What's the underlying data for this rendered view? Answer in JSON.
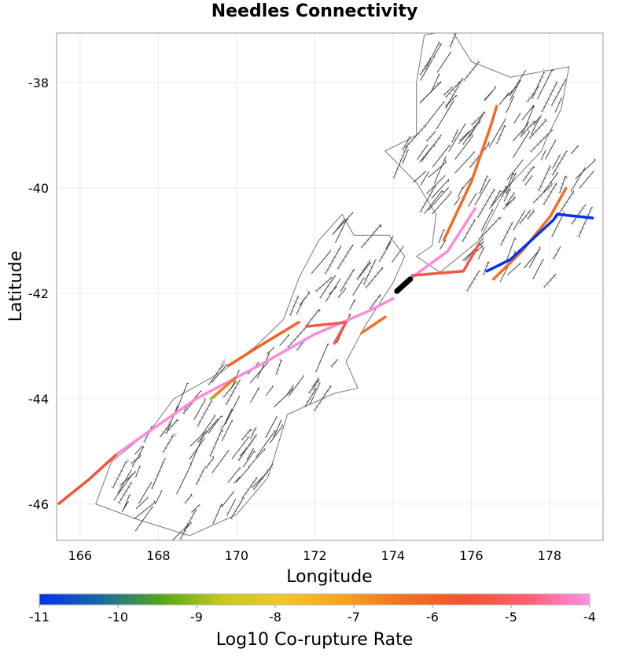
{
  "chart_data": {
    "type": "map",
    "title": "Needles Connectivity",
    "xlabel": "Longitude",
    "ylabel": "Latitude",
    "xlim": [
      165.4,
      179.37
    ],
    "ylim": [
      -46.69,
      -37.06
    ],
    "xticks": [
      166,
      168,
      170,
      172,
      174,
      176,
      178
    ],
    "yticks": [
      -38,
      -40,
      -42,
      -44,
      -46
    ],
    "grid": true,
    "colorbar": {
      "label": "Log10 Co-rupture Rate",
      "range": [
        -11,
        -4
      ],
      "ticks": [
        -11,
        -10,
        -9,
        -8,
        -7,
        -6,
        -5,
        -4
      ],
      "placement": "bottom",
      "colors": [
        "#0033ee",
        "#1a6aa0",
        "#52a818",
        "#c8c820",
        "#f4c52a",
        "#f7a020",
        "#f07020",
        "#ee5530",
        "#fe6070",
        "#ff90e8"
      ]
    },
    "coastline": [
      [
        [
          166.4,
          -46.0
        ],
        [
          166.8,
          -45.2
        ],
        [
          167.8,
          -44.6
        ],
        [
          168.4,
          -44.0
        ],
        [
          169.6,
          -43.5
        ],
        [
          170.5,
          -43.0
        ],
        [
          171.2,
          -42.5
        ],
        [
          171.6,
          -41.7
        ],
        [
          172.1,
          -41.0
        ],
        [
          172.7,
          -40.5
        ],
        [
          173.0,
          -40.9
        ],
        [
          173.9,
          -40.9
        ],
        [
          174.3,
          -41.3
        ],
        [
          174.0,
          -41.8
        ],
        [
          173.3,
          -42.6
        ],
        [
          172.8,
          -43.3
        ],
        [
          173.1,
          -43.8
        ],
        [
          172.5,
          -43.9
        ],
        [
          171.3,
          -44.3
        ],
        [
          170.8,
          -45.5
        ],
        [
          170.0,
          -46.2
        ],
        [
          168.8,
          -46.6
        ],
        [
          167.5,
          -46.3
        ]
      ],
      [
        [
          174.6,
          -41.3
        ],
        [
          175.2,
          -41.6
        ],
        [
          176.2,
          -41.0
        ],
        [
          176.9,
          -40.0
        ],
        [
          177.8,
          -39.3
        ],
        [
          177.9,
          -39.1
        ],
        [
          178.3,
          -38.5
        ],
        [
          178.5,
          -37.7
        ],
        [
          177.0,
          -37.9
        ],
        [
          176.0,
          -37.6
        ],
        [
          175.5,
          -37.0
        ],
        [
          174.8,
          -37.1
        ],
        [
          174.6,
          -38.0
        ],
        [
          174.6,
          -39.0
        ],
        [
          173.8,
          -39.3
        ],
        [
          174.6,
          -39.9
        ],
        [
          175.1,
          -40.5
        ],
        [
          175.0,
          -41.1
        ]
      ]
    ],
    "ruptures": [
      {
        "value": -5.5,
        "points": [
          [
            165.46,
            -45.99
          ],
          [
            166.2,
            -45.55
          ],
          [
            166.96,
            -45.04
          ]
        ]
      },
      {
        "value": -4.1,
        "points": [
          [
            166.96,
            -45.04
          ],
          [
            168.97,
            -44.0
          ],
          [
            170.58,
            -43.37
          ],
          [
            171.99,
            -42.78
          ],
          [
            173.4,
            -42.33
          ],
          [
            174.0,
            -42.1
          ]
        ]
      },
      {
        "value": -4.1,
        "points": [
          [
            174.44,
            -41.73
          ],
          [
            174.7,
            -41.58
          ],
          [
            175.4,
            -41.2
          ],
          [
            176.1,
            -40.39
          ]
        ]
      },
      {
        "value": -6.0,
        "points": [
          [
            169.8,
            -43.37
          ],
          [
            170.7,
            -42.95
          ],
          [
            171.59,
            -42.55
          ]
        ]
      },
      {
        "value": -6.3,
        "points": [
          [
            176.57,
            -41.73
          ],
          [
            177.3,
            -41.2
          ],
          [
            178.02,
            -40.54
          ],
          [
            178.42,
            -40.01
          ]
        ]
      },
      {
        "value": -11,
        "points": [
          [
            176.4,
            -41.58
          ],
          [
            177.0,
            -41.36
          ],
          [
            178.1,
            -40.61
          ],
          [
            178.2,
            -40.5
          ],
          [
            179.1,
            -40.57
          ]
        ]
      },
      {
        "value": -6.2,
        "points": [
          [
            175.3,
            -40.99
          ],
          [
            176.01,
            -39.87
          ],
          [
            176.5,
            -38.82
          ],
          [
            176.65,
            -38.45
          ]
        ]
      },
      {
        "value": -5.3,
        "points": [
          [
            174.5,
            -41.66
          ],
          [
            175.8,
            -41.58
          ],
          [
            176.2,
            -41.06
          ]
        ]
      },
      {
        "value": -6.5,
        "points": [
          [
            169.4,
            -43.97
          ],
          [
            169.98,
            -43.6
          ]
        ]
      },
      {
        "value": -9,
        "points": [
          [
            169.35,
            -44.0
          ],
          [
            169.45,
            -43.95
          ]
        ]
      },
      {
        "value": -5.2,
        "points": [
          [
            171.79,
            -42.63
          ],
          [
            172.8,
            -42.55
          ],
          [
            172.5,
            -42.95
          ]
        ]
      },
      {
        "value": -6.4,
        "points": [
          [
            173.2,
            -42.75
          ],
          [
            173.8,
            -42.45
          ]
        ]
      }
    ],
    "source_section": {
      "color": "#000000",
      "points": [
        [
          174.1,
          -41.96
        ],
        [
          174.44,
          -41.73
        ]
      ]
    }
  }
}
